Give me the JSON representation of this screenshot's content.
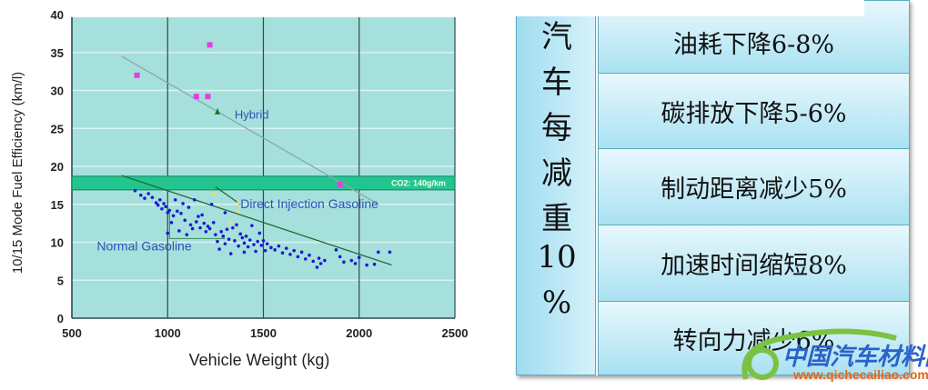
{
  "chart_data": {
    "type": "scatter",
    "xlabel": "Vehicle Weight (kg)",
    "ylabel": "10/15 Mode Fuel Efficiency (km/l)",
    "xlim": [
      500,
      2500
    ],
    "ylim": [
      0,
      40
    ],
    "xticks": [
      "500",
      "1000",
      "1500",
      "2000",
      "2500"
    ],
    "yticks": [
      "0",
      "5",
      "10",
      "15",
      "20",
      "25",
      "30",
      "35",
      "40"
    ],
    "grid": true,
    "background": "#a6e0dc",
    "annotations": {
      "hybrid": "Hybrid",
      "direct_injection": "Direct Injection Gasoline",
      "normal": "Normal Gasoline",
      "co2_band": "CO2: 140g/km"
    },
    "co2_band": [
      16.9,
      18.7
    ],
    "series": [
      {
        "name": "Hybrid",
        "marker": "square",
        "color": "#e040e0",
        "points": [
          [
            840,
            32
          ],
          [
            1150,
            29.2
          ],
          [
            1210,
            29.2
          ],
          [
            1220,
            36
          ],
          [
            1900,
            17.6
          ]
        ]
      },
      {
        "marker": "triangle",
        "color": "#1a7a2a",
        "points": [
          [
            1260,
            27.2
          ]
        ]
      },
      {
        "marker": "dot",
        "color": "#f2e050",
        "points": [
          [
            1240,
            16.3
          ],
          [
            1370,
            15.2
          ],
          [
            1370,
            14
          ],
          [
            1330,
            12.5
          ]
        ]
      },
      {
        "name": "Normal Gasoline",
        "marker": "dot",
        "color": "#1a1ad0",
        "points": [
          [
            830,
            16.8
          ],
          [
            860,
            16.2
          ],
          [
            880,
            15.8
          ],
          [
            900,
            16.4
          ],
          [
            920,
            15.9
          ],
          [
            940,
            15.2
          ],
          [
            950,
            14.9
          ],
          [
            960,
            15.6
          ],
          [
            970,
            14.4
          ],
          [
            980,
            15.1
          ],
          [
            990,
            14.7
          ],
          [
            1000,
            13.9
          ],
          [
            1000,
            11.2
          ],
          [
            1010,
            14.2
          ],
          [
            1020,
            12.6
          ],
          [
            1030,
            13.5
          ],
          [
            1040,
            15.6
          ],
          [
            1050,
            14.1
          ],
          [
            1060,
            11.5
          ],
          [
            1070,
            13.8
          ],
          [
            1080,
            15.1
          ],
          [
            1090,
            12.9
          ],
          [
            1100,
            11.0
          ],
          [
            1110,
            14.6
          ],
          [
            1120,
            12.3
          ],
          [
            1130,
            11.8
          ],
          [
            1140,
            15.6
          ],
          [
            1150,
            12.7
          ],
          [
            1160,
            13.4
          ],
          [
            1170,
            11.9
          ],
          [
            1180,
            13.6
          ],
          [
            1190,
            12.5
          ],
          [
            1200,
            11.4
          ],
          [
            1210,
            12.1
          ],
          [
            1220,
            11.8
          ],
          [
            1230,
            15.0
          ],
          [
            1240,
            12.6
          ],
          [
            1250,
            11.0
          ],
          [
            1260,
            10.1
          ],
          [
            1270,
            9.1
          ],
          [
            1280,
            11.4
          ],
          [
            1290,
            10.8
          ],
          [
            1300,
            13.9
          ],
          [
            1300,
            9.8
          ],
          [
            1310,
            11.7
          ],
          [
            1320,
            10.4
          ],
          [
            1330,
            8.5
          ],
          [
            1340,
            11.9
          ],
          [
            1350,
            10.2
          ],
          [
            1360,
            12.3
          ],
          [
            1370,
            9.5
          ],
          [
            1380,
            11.1
          ],
          [
            1390,
            10.6
          ],
          [
            1400,
            8.7
          ],
          [
            1400,
            9.9
          ],
          [
            1410,
            10.8
          ],
          [
            1420,
            9.4
          ],
          [
            1430,
            10.3
          ],
          [
            1440,
            12.2
          ],
          [
            1450,
            9.7
          ],
          [
            1460,
            8.8
          ],
          [
            1470,
            10.1
          ],
          [
            1480,
            11.2
          ],
          [
            1490,
            9.6
          ],
          [
            1500,
            10.2
          ],
          [
            1510,
            8.9
          ],
          [
            1520,
            9.8
          ],
          [
            1540,
            9.3
          ],
          [
            1560,
            9.0
          ],
          [
            1580,
            9.5
          ],
          [
            1600,
            8.6
          ],
          [
            1620,
            9.2
          ],
          [
            1640,
            8.4
          ],
          [
            1660,
            8.9
          ],
          [
            1680,
            8.1
          ],
          [
            1700,
            8.7
          ],
          [
            1720,
            7.8
          ],
          [
            1740,
            8.3
          ],
          [
            1760,
            7.5
          ],
          [
            1780,
            6.7
          ],
          [
            1790,
            7.9
          ],
          [
            1800,
            7.2
          ],
          [
            1820,
            7.6
          ],
          [
            1880,
            9.0
          ],
          [
            1900,
            8.1
          ],
          [
            1920,
            7.4
          ],
          [
            1960,
            7.6
          ],
          [
            1980,
            7.2
          ],
          [
            2000,
            8.0
          ],
          [
            2040,
            7.0
          ],
          [
            2080,
            7.1
          ],
          [
            2100,
            8.7
          ],
          [
            2160,
            8.7
          ]
        ]
      }
    ],
    "trend_lines": [
      {
        "name": "Hybrid",
        "color": "#8aa8a8",
        "from": [
          760,
          34.5
        ],
        "to": [
          2100,
          15
        ]
      },
      {
        "name": "Normal Gasoline",
        "color": "#1f6b3a",
        "from": [
          760,
          18.8
        ],
        "to": [
          2170,
          7
        ]
      },
      {
        "name": "Direct Injection Gasoline",
        "color": "#1f6b3a",
        "from": [
          1250,
          17.3
        ],
        "to": [
          1380,
          15
        ]
      }
    ]
  },
  "table": {
    "header_chars": [
      "汽",
      "车",
      "每",
      "减",
      "重",
      "10",
      "%"
    ],
    "rows": [
      "油耗下降6-8%",
      "碳排放下降5-6%",
      "制动距离减少5%",
      "加速时间缩短8%",
      "转向力减少6%"
    ]
  },
  "watermark": {
    "title": "中国汽车材料网",
    "url": "www.qichecailiao.com"
  }
}
